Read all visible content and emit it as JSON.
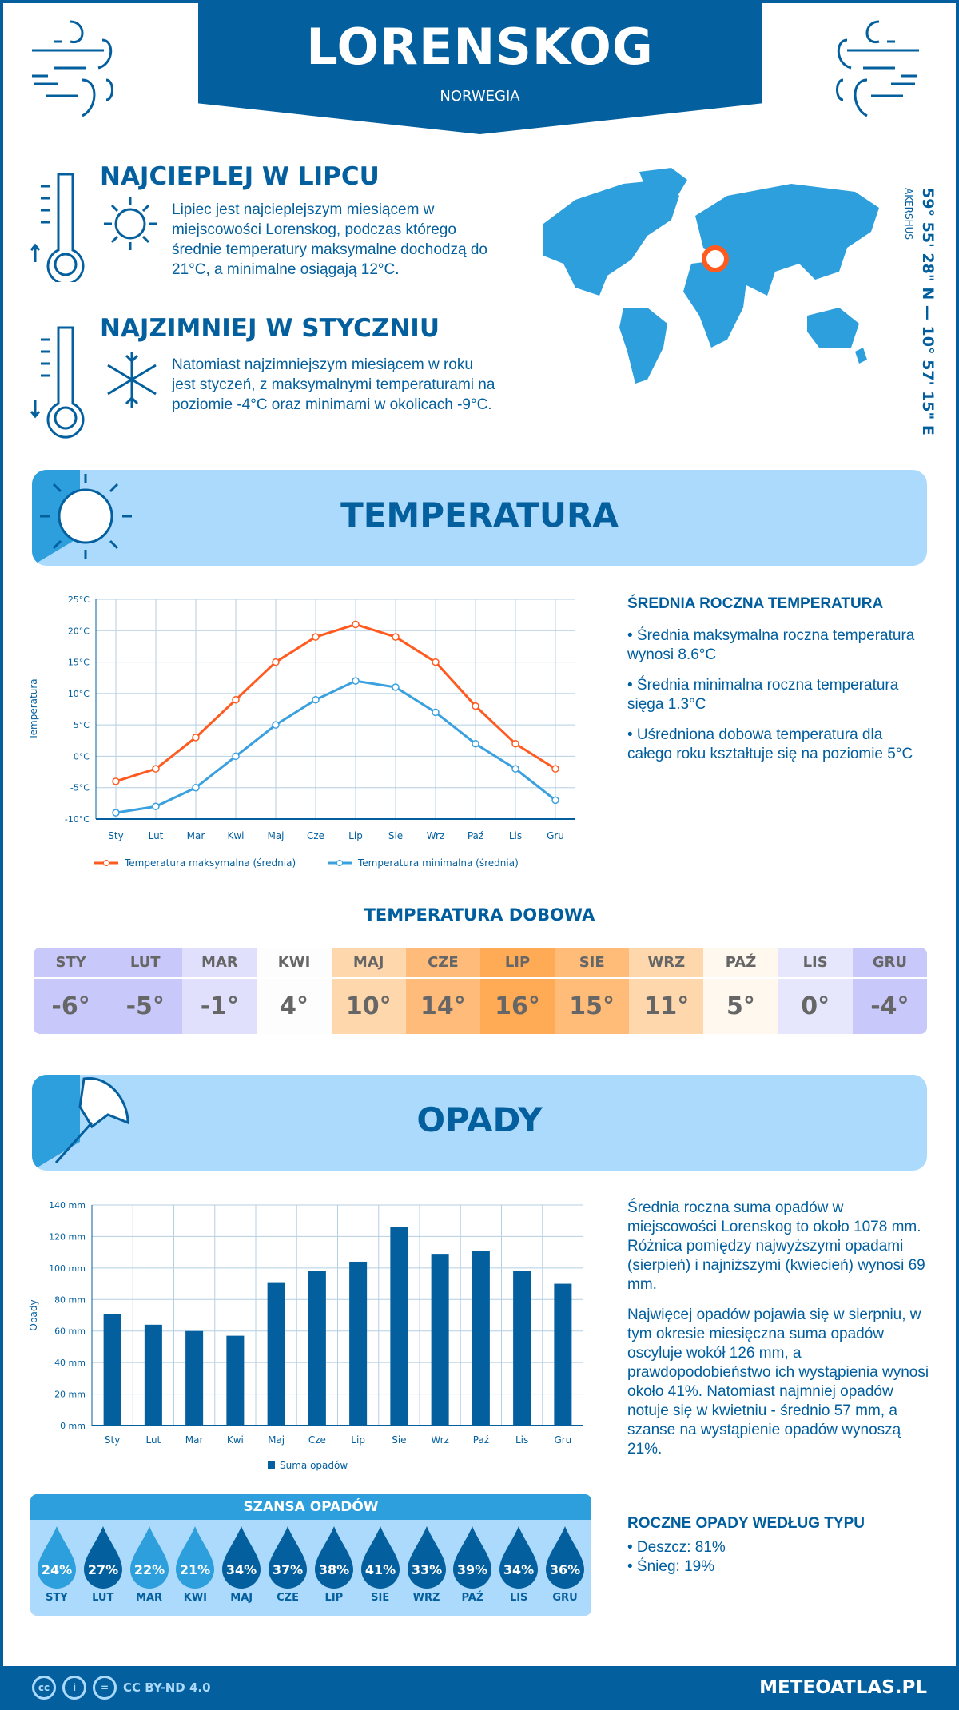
{
  "header": {
    "city": "LORENSKOG",
    "country": "NORWEGIA"
  },
  "warm": {
    "title": "NAJCIEPLEJ W LIPCU",
    "text": "Lipiec jest najcieplejszym miesiącem w miejscowości Lorenskog, podczas którego średnie temperatury maksymalne dochodzą do 21°C, a minimalne osiągają 12°C."
  },
  "cold": {
    "title": "NAJZIMNIEJ W STYCZNIU",
    "text": "Natomiast najzimniejszym miesiącem w roku jest styczeń, z maksymalnymi temperaturami na poziomie -4°C oraz minimami w okolicach -9°C."
  },
  "location": {
    "coords": "59° 55' 28\" N — 10° 57' 15\" E",
    "region": "AKERSHUS"
  },
  "temp_section": {
    "title": "TEMPERATURA"
  },
  "temp_summary": {
    "heading": "ŚREDNIA ROCZNA TEMPERATURA",
    "items": [
      "• Średnia maksymalna roczna temperatura wynosi 8.6°C",
      "• Średnia minimalna roczna temperatura sięga 1.3°C",
      "• Uśredniona dobowa temperatura dla całego roku kształtuje się na poziomie 5°C"
    ]
  },
  "daily": {
    "heading": "TEMPERATURA DOBOWA",
    "months": [
      "STY",
      "LUT",
      "MAR",
      "KWI",
      "MAJ",
      "CZE",
      "LIP",
      "SIE",
      "WRZ",
      "PAŹ",
      "LIS",
      "GRU"
    ],
    "values": [
      "-6°",
      "-5°",
      "-1°",
      "4°",
      "10°",
      "14°",
      "16°",
      "15°",
      "11°",
      "5°",
      "0°",
      "-4°"
    ],
    "colors": [
      "#c8c8fa",
      "#c8c8fa",
      "#e0e0fd",
      "#fdfdfd",
      "#fed7ad",
      "#ffbb7a",
      "#ffab55",
      "#ffbb78",
      "#fed7ad",
      "#fef8ef",
      "#e6e6fd",
      "#c8c8fa"
    ]
  },
  "precip_section": {
    "title": "OPADY"
  },
  "precip_text": [
    "Średnia roczna suma opadów w miejscowości Lorenskog to około 1078 mm. Różnica pomiędzy najwyższymi opadami (sierpień) i najniższymi (kwiecień) wynosi 69 mm.",
    "Najwięcej opadów pojawia się w sierpniu, w tym okresie miesięczna suma opadów oscyluje wokół 126 mm, a prawdopodobieństwo ich wystąpienia wynosi około 41%. Natomiast najmniej opadów notuje się w kwietniu - średnio 57 mm, a szanse na wystąpienie opadów wynoszą 21%."
  ],
  "precip_type": {
    "heading": "ROCZNE OPADY WEDŁUG TYPU",
    "items": [
      "• Deszcz: 81%",
      "• Śnieg: 19%"
    ]
  },
  "chance": {
    "heading": "SZANSA OPADÓW",
    "months": [
      "STY",
      "LUT",
      "MAR",
      "KWI",
      "MAJ",
      "CZE",
      "LIP",
      "SIE",
      "WRZ",
      "PAŹ",
      "LIS",
      "GRU"
    ],
    "values": [
      "24%",
      "27%",
      "22%",
      "21%",
      "34%",
      "37%",
      "38%",
      "41%",
      "33%",
      "39%",
      "34%",
      "36%"
    ],
    "colors": [
      "#2d9fdc",
      "#035f9d",
      "#2d9fdc",
      "#2d9fdc",
      "#035f9d",
      "#035f9d",
      "#035f9d",
      "#035f9d",
      "#035f9d",
      "#035f9d",
      "#035f9d",
      "#035f9d"
    ]
  },
  "footer": {
    "license": "CC BY-ND 4.0",
    "site": "METEOATLAS.PL"
  },
  "colors": {
    "primary": "#035f9d",
    "accent": "#2d9fdc",
    "pale": "#acdafc",
    "max_line": "#ff5a1f",
    "min_line": "#3aa0e0"
  },
  "chart_data": [
    {
      "type": "line",
      "ylabel": "Temperatura",
      "categories": [
        "Sty",
        "Lut",
        "Mar",
        "Kwi",
        "Maj",
        "Cze",
        "Lip",
        "Sie",
        "Wrz",
        "Paź",
        "Lis",
        "Gru"
      ],
      "ylim": [
        -10,
        25
      ],
      "yticks": [
        "-10°C",
        "-5°C",
        "0°C",
        "5°C",
        "10°C",
        "15°C",
        "20°C",
        "25°C"
      ],
      "grid": true,
      "legend": "bottom",
      "series": [
        {
          "name": "Temperatura maksymalna (średnia)",
          "color": "#ff5a1f",
          "values": [
            -4,
            -2,
            3,
            9,
            15,
            19,
            21,
            19,
            15,
            8,
            2,
            -2
          ]
        },
        {
          "name": "Temperatura minimalna (średnia)",
          "color": "#3aa0e0",
          "values": [
            -9,
            -8,
            -5,
            0,
            5,
            9,
            12,
            11,
            7,
            2,
            -2,
            -7
          ]
        }
      ]
    },
    {
      "type": "bar",
      "ylabel": "Opady",
      "categories": [
        "Sty",
        "Lut",
        "Mar",
        "Kwi",
        "Maj",
        "Cze",
        "Lip",
        "Sie",
        "Wrz",
        "Paź",
        "Lis",
        "Gru"
      ],
      "ylim": [
        0,
        140
      ],
      "yticks": [
        "0 mm",
        "20 mm",
        "40 mm",
        "60 mm",
        "80 mm",
        "100 mm",
        "120 mm",
        "140 mm"
      ],
      "grid": true,
      "legend": "bottom",
      "series": [
        {
          "name": "Suma opadów",
          "color": "#035f9d",
          "values": [
            71,
            64,
            60,
            57,
            91,
            98,
            104,
            126,
            109,
            111,
            98,
            90
          ]
        }
      ]
    }
  ]
}
